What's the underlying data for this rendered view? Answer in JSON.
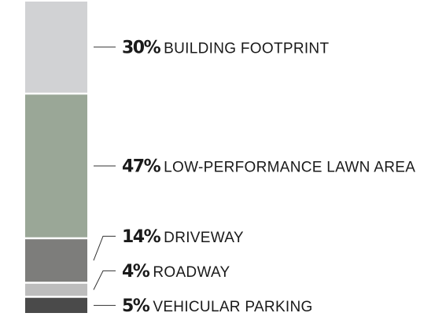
{
  "chart_data": {
    "type": "bar",
    "stacked": true,
    "orientation": "vertical",
    "categories": [
      "BUILDING FOOTPRINT",
      "LOW-PERFORMANCE LAWN AREA",
      "DRIVEWAY",
      "ROADWAY",
      "VEHICULAR PARKING"
    ],
    "values": [
      30,
      47,
      14,
      4,
      5
    ],
    "value_labels": [
      "30%",
      "47%",
      "14%",
      "4%",
      "5%"
    ],
    "unit": "%",
    "colors": [
      "#d1d2d4",
      "#9aa797",
      "#7d7d7b",
      "#bdbdbd",
      "#4a4a4a"
    ],
    "title": "",
    "xlabel": "",
    "ylabel": "",
    "ylim": [
      0,
      100
    ],
    "grid": false,
    "legend": "none"
  }
}
